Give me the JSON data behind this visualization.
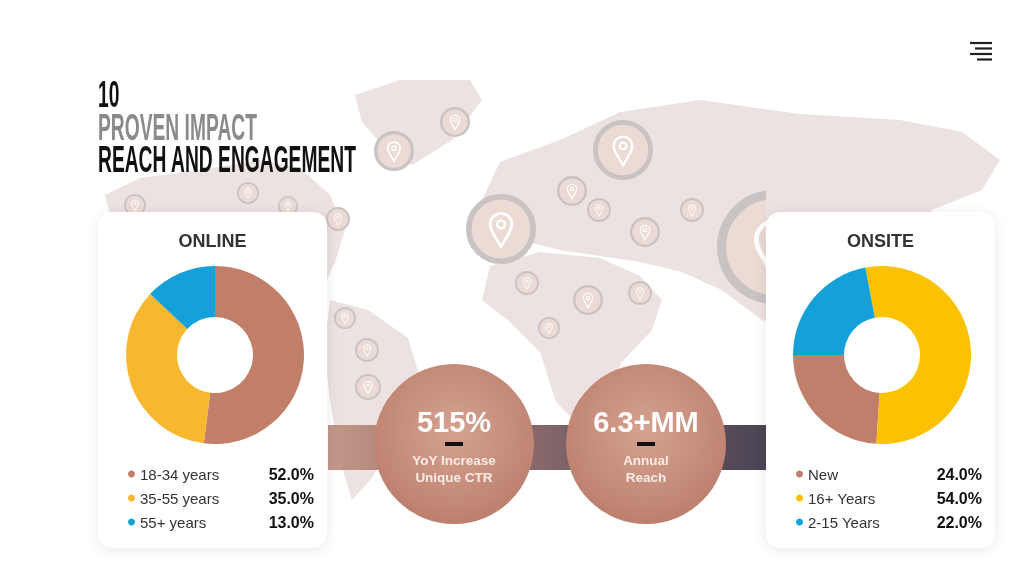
{
  "chart_data": [
    {
      "type": "other",
      "title": "10",
      "subtitle": "PROVEN IMPACT",
      "annotations": [
        "REACH AND ENGAGEMENT"
      ]
    },
    {
      "type": "donut",
      "title": "ONLINE",
      "categories": [
        "18-34 years",
        "35-55 years",
        "55+ years"
      ],
      "values": [
        52,
        35,
        13
      ],
      "colors": [
        "#c17f6a",
        "#f7b72f",
        "#14a0d8"
      ],
      "value_labels": [
        "52.0%",
        "35.0%",
        "13.0%"
      ],
      "legend": "bottom"
    },
    {
      "type": "other",
      "annotations": [
        "515%",
        "YoY Increase Unique CTR",
        "6.3+MM",
        "Annual Reach"
      ]
    },
    {
      "type": "donut",
      "title": "ONSITE",
      "categories": [
        "New",
        "16+ Years",
        "2-15 Years"
      ],
      "values": [
        24,
        54,
        22
      ],
      "colors": [
        "#c07f6a",
        "#fcc100",
        "#14a0d8"
      ],
      "value_labels": [
        "24.0%",
        "54.0%",
        "22.0%"
      ],
      "legend": "bottom"
    }
  ]
}
